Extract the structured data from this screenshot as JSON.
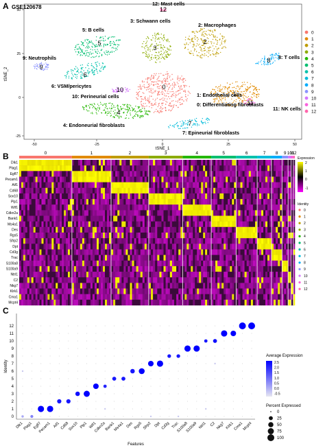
{
  "panels": {
    "a": {
      "letter": "A",
      "dataset": "GSE120678"
    },
    "b": {
      "letter": "B"
    },
    "c": {
      "letter": "C"
    }
  },
  "tsne": {
    "xlabel": "tSNE_1",
    "ylabel": "tSNE_2",
    "x_ticks": [
      "-50",
      "-25",
      "0",
      "25",
      "50"
    ],
    "y_ticks": [
      "50",
      "25",
      "0",
      "-25"
    ],
    "legend_ids": [
      "0",
      "1",
      "2",
      "3",
      "4",
      "5",
      "6",
      "7",
      "8",
      "9",
      "10",
      "11",
      "12"
    ],
    "cluster_colors": [
      "#f8766d",
      "#e18a00",
      "#be9c00",
      "#8cab00",
      "#24b700",
      "#00be70",
      "#00c1ab",
      "#00bbda",
      "#00acfc",
      "#8b93ff",
      "#d575fe",
      "#f962dd",
      "#ff65ac"
    ],
    "cluster_labels": [
      {
        "id": "0",
        "number": "0",
        "name": "0: Differentiating fibroblasts"
      },
      {
        "id": "1",
        "number": "1",
        "name": "1: Endothelial cells"
      },
      {
        "id": "2",
        "number": "2",
        "name": "2: Macrophages"
      },
      {
        "id": "3",
        "number": "3",
        "name": "3: Schwann cells"
      },
      {
        "id": "4",
        "number": "4",
        "name": "4: Endoneurial fibroblasts"
      },
      {
        "id": "5",
        "number": "5",
        "name": "5: B cells"
      },
      {
        "id": "6",
        "number": "6",
        "name": "6: VSM/pericytes"
      },
      {
        "id": "7",
        "number": "7",
        "name": "7: Epineurial fibroblasts"
      },
      {
        "id": "8",
        "number": "8",
        "name": "8: T cells"
      },
      {
        "id": "9",
        "number": "9",
        "name": "9: Neutrophils"
      },
      {
        "id": "10",
        "number": "10",
        "name": "10: Perineurial cells"
      },
      {
        "id": "11",
        "number": "11",
        "name": "11: NK cells"
      },
      {
        "id": "12",
        "number": "12",
        "name": "12: Mast cells"
      }
    ]
  },
  "heatmap": {
    "cluster_headers": [
      "0",
      "1",
      "2",
      "3",
      "4",
      "5",
      "6",
      "7",
      "8",
      "9",
      "10",
      "11",
      "12"
    ],
    "genes": [
      "Dlk1",
      "Plag1",
      "Egfl7",
      "Pecam1",
      "Aif1",
      "Cd68",
      "Sox10",
      "Plp1",
      "Wif1",
      "Cdkn2a",
      "Bank1",
      "Ms4a1",
      "Des",
      "Rgs5",
      "Sfrp2",
      "Dpt",
      "Cd3g",
      "Trac",
      "S100a8",
      "S100a9",
      "Ntrl1",
      "C2",
      "Nkg7",
      "Klrk1",
      "Cma1",
      "Mcpt4"
    ],
    "expression_title": "Expression",
    "expression_ticks": [
      "2",
      "1",
      "0",
      "-1"
    ],
    "identity_title": "Identity",
    "identity_ids": [
      "0",
      "1",
      "2",
      "3",
      "4",
      "5",
      "6",
      "7",
      "8",
      "9",
      "10",
      "11",
      "12"
    ]
  },
  "chart_data": {
    "type": "dotplot",
    "xlabel": "Features",
    "ylabel": "Identity",
    "features": [
      "Dlk1",
      "Plag1",
      "Egfl7",
      "Pecam1",
      "Aif1",
      "Cd68",
      "Sox10",
      "Plp1",
      "Wif1",
      "Cdkn2a",
      "Bank1",
      "Ms4a1",
      "Des",
      "Rgs5",
      "Sfrp2",
      "Dpt",
      "Cd3g",
      "Trac",
      "S100a8",
      "S100a9",
      "Ntrl1",
      "C2",
      "Nkg7",
      "Klrk1",
      "Cma1",
      "Mcpt4"
    ],
    "identities": [
      "0",
      "1",
      "2",
      "3",
      "4",
      "5",
      "6",
      "7",
      "8",
      "9",
      "10",
      "11",
      "12"
    ],
    "points": [
      {
        "feature": "Dlk1",
        "identity": "0",
        "pct": 5,
        "avg": 0.3
      },
      {
        "feature": "Plag1",
        "identity": "0",
        "pct": 10,
        "avg": 0.8
      },
      {
        "feature": "Egfl7",
        "identity": "1",
        "pct": 80,
        "avg": 2.5
      },
      {
        "feature": "Pecam1",
        "identity": "1",
        "pct": 80,
        "avg": 2.5
      },
      {
        "feature": "Aif1",
        "identity": "2",
        "pct": 30,
        "avg": 2.2
      },
      {
        "feature": "Cd68",
        "identity": "2",
        "pct": 30,
        "avg": 2.2
      },
      {
        "feature": "Sox10",
        "identity": "3",
        "pct": 35,
        "avg": 2.3
      },
      {
        "feature": "Plp1",
        "identity": "3",
        "pct": 75,
        "avg": 2.5
      },
      {
        "feature": "Wif1",
        "identity": "4",
        "pct": 60,
        "avg": 2.5
      },
      {
        "feature": "Cdkn2a",
        "identity": "4",
        "pct": 15,
        "avg": 2.0
      },
      {
        "feature": "Bank1",
        "identity": "5",
        "pct": 25,
        "avg": 2.2
      },
      {
        "feature": "Ms4a1",
        "identity": "5",
        "pct": 25,
        "avg": 2.2
      },
      {
        "feature": "Des",
        "identity": "6",
        "pct": 35,
        "avg": 2.2
      },
      {
        "feature": "Rgs5",
        "identity": "6",
        "pct": 70,
        "avg": 2.5
      },
      {
        "feature": "Sfrp2",
        "identity": "7",
        "pct": 60,
        "avg": 2.5
      },
      {
        "feature": "Dpt",
        "identity": "7",
        "pct": 80,
        "avg": 2.5
      },
      {
        "feature": "Cd3g",
        "identity": "8",
        "pct": 20,
        "avg": 2.2
      },
      {
        "feature": "Trac",
        "identity": "8",
        "pct": 20,
        "avg": 2.2
      },
      {
        "feature": "S100a8",
        "identity": "9",
        "pct": 80,
        "avg": 2.5
      },
      {
        "feature": "S100a9",
        "identity": "9",
        "pct": 80,
        "avg": 2.5
      },
      {
        "feature": "Ntrl1",
        "identity": "10",
        "pct": 15,
        "avg": 2.2
      },
      {
        "feature": "C2",
        "identity": "10",
        "pct": 25,
        "avg": 2.3
      },
      {
        "feature": "Nkg7",
        "identity": "11",
        "pct": 80,
        "avg": 2.5
      },
      {
        "feature": "Klrk1",
        "identity": "11",
        "pct": 60,
        "avg": 2.5
      },
      {
        "feature": "Cma1",
        "identity": "12",
        "pct": 100,
        "avg": 2.5
      },
      {
        "feature": "Mcpt4",
        "identity": "12",
        "pct": 100,
        "avg": 2.5
      }
    ],
    "avg_expression_title": "Average Expression",
    "avg_ticks": [
      "2.5",
      "2.0",
      "1.5",
      "1.0",
      "0.5",
      "0.0",
      "-0.5"
    ],
    "pct_title": "Percent Expressed",
    "pct_values": [
      "0",
      "25",
      "50",
      "75",
      "100"
    ],
    "colors": {
      "low": "#e8e8f0",
      "high": "#0000ff"
    }
  }
}
